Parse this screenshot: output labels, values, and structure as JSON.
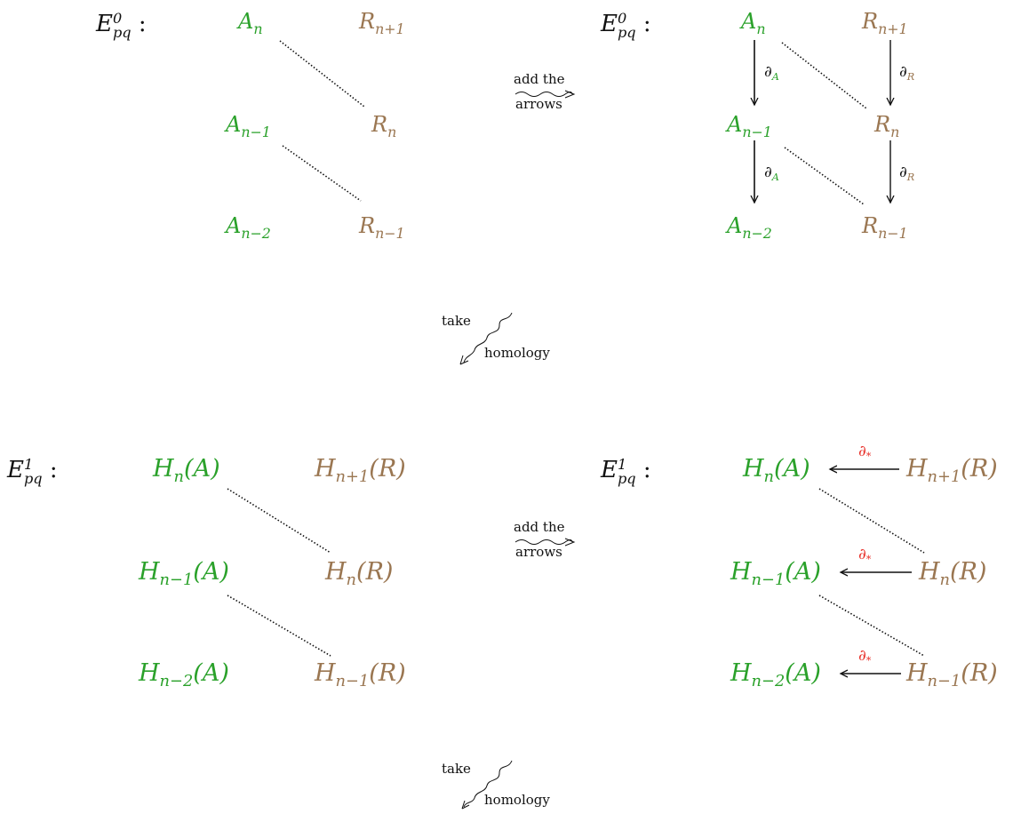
{
  "labels": {
    "E": "E",
    "E_sub": "pq",
    "E0_sup": "0",
    "E1_sup": "1",
    "colon": ":",
    "add_line1": "add the",
    "add_line2": "arrows",
    "take": "take",
    "homology": "homology",
    "partial": "∂",
    "sub_A": "A",
    "sub_R": "R",
    "star": "*"
  },
  "nodes": {
    "A": "A",
    "R": "R",
    "H": "H",
    "HA": "(A)",
    "HR": "(R)",
    "n": "n",
    "n1": "n−1",
    "n2": "n−2",
    "np1": "n+1"
  },
  "colors": {
    "A_chain": "#2aa12a",
    "R_chain": "#9a7651",
    "connecting_map": "#e8312a",
    "arrows": "#111111"
  }
}
